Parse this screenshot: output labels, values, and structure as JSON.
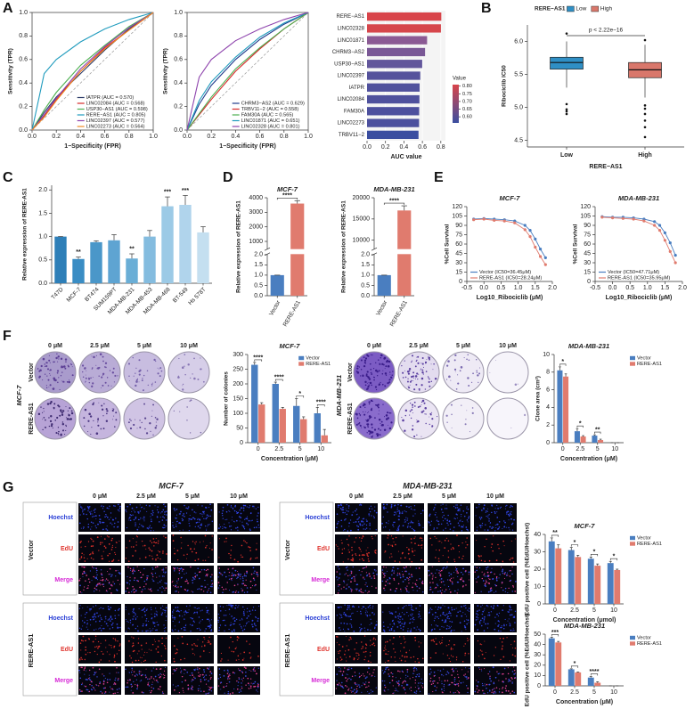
{
  "panel_labels": [
    "A",
    "B",
    "C",
    "D",
    "E",
    "F",
    "G"
  ],
  "colony_images": [
    {
      "cell_line": "MCF-7",
      "columns": [
        "0 μM",
        "2.5 μM",
        "5 μM",
        "10 μM"
      ],
      "rows": [
        "Vector",
        "RERE-AS1"
      ]
    },
    {
      "cell_line": "MDA-MB-231",
      "columns": [
        "0 μM",
        "2.5 μM",
        "5 μM",
        "10 μM"
      ],
      "rows": [
        "Vector",
        "RERE-AS1"
      ]
    }
  ],
  "edu_images": [
    {
      "cell_line": "MCF-7",
      "columns": [
        "0 μM",
        "2.5 μM",
        "5 μM",
        "10 μM"
      ],
      "groups": [
        "Vector",
        "RERE-AS1"
      ],
      "stains": [
        "Hoechst",
        "EdU",
        "Merge"
      ]
    },
    {
      "cell_line": "MDA-MB-231",
      "columns": [
        "0 μM",
        "2.5 μM",
        "5 μM",
        "10 μM"
      ],
      "groups": [
        "Vector",
        "RERE-AS1"
      ],
      "stains": [
        "Hoechst",
        "EdU",
        "Merge"
      ]
    }
  ],
  "chart_data": [
    {
      "type": "line",
      "frame": true,
      "diagonal": true,
      "legend": "lower right",
      "xlabel": "1−Specificity (FPR)",
      "ylabel": "Sensitivity (TPR)",
      "xlim": [
        0,
        1
      ],
      "ylim": [
        0,
        1
      ],
      "xticks": [
        {
          "value": 0,
          "label": "0.0"
        },
        0.2,
        0.4,
        0.6,
        0.8,
        {
          "value": 1,
          "label": "1.0"
        }
      ],
      "yticks": [
        {
          "value": 0,
          "label": "0.0"
        },
        0.2,
        0.4,
        0.6,
        0.8,
        {
          "value": 1,
          "label": "1.0"
        }
      ],
      "x": [
        0,
        0.1,
        0.2,
        0.4,
        0.6,
        0.8,
        1
      ],
      "series": [
        {
          "name": "IATPR (AUC = 0.570)",
          "color": "#2b3a67",
          "values": [
            0,
            0.15,
            0.28,
            0.48,
            0.68,
            0.86,
            1
          ]
        },
        {
          "name": "LINC02084 (AUC = 0.568)",
          "color": "#d62728",
          "values": [
            0,
            0.12,
            0.26,
            0.5,
            0.7,
            0.85,
            1
          ]
        },
        {
          "name": "USP30−AS1 (AUC = 0.598)",
          "color": "#4caf50",
          "values": [
            0,
            0.17,
            0.32,
            0.55,
            0.72,
            0.88,
            1
          ]
        },
        {
          "name": "RERE−AS1 (AUC = 0.805)",
          "color": "#1f9bbd",
          "values": [
            0,
            0.48,
            0.6,
            0.75,
            0.86,
            0.94,
            1
          ]
        },
        {
          "name": "LINC02397 (AUC = 0.577)",
          "color": "#8e44ad",
          "values": [
            0,
            0.13,
            0.27,
            0.52,
            0.71,
            0.87,
            1
          ]
        },
        {
          "name": "LINC02273 (AUC = 0.564)",
          "color": "#f08a24",
          "values": [
            0,
            0.11,
            0.25,
            0.5,
            0.69,
            0.85,
            1
          ]
        }
      ]
    },
    {
      "type": "line",
      "frame": true,
      "diagonal": true,
      "legend": "lower right",
      "xlabel": "1−Specificity (FPR)",
      "ylabel": "Sensitivity (TPR)",
      "xlim": [
        0,
        1
      ],
      "ylim": [
        0,
        1
      ],
      "xticks": [
        {
          "value": 0,
          "label": "0.0"
        },
        0.2,
        0.4,
        0.6,
        0.8,
        {
          "value": 1,
          "label": "1.0"
        }
      ],
      "yticks": [
        {
          "value": 0,
          "label": "0.0"
        },
        0.2,
        0.4,
        0.6,
        0.8,
        {
          "value": 1,
          "label": "1.0"
        }
      ],
      "x": [
        0,
        0.1,
        0.2,
        0.4,
        0.6,
        0.8,
        1
      ],
      "series": [
        {
          "name": "CHRM3−AS2 (AUC = 0.629)",
          "color": "#1f3b8c",
          "values": [
            0,
            0.22,
            0.38,
            0.6,
            0.77,
            0.9,
            1
          ]
        },
        {
          "name": "TRBV11−2 (AUC = 0.558)",
          "color": "#d62728",
          "values": [
            0,
            0.13,
            0.26,
            0.5,
            0.69,
            0.86,
            1
          ]
        },
        {
          "name": "FAM30A (AUC = 0.565)",
          "color": "#4caf50",
          "values": [
            0,
            0.14,
            0.28,
            0.52,
            0.7,
            0.86,
            1
          ]
        },
        {
          "name": "LINC01871 (AUC = 0.651)",
          "color": "#1f9bbd",
          "values": [
            0,
            0.25,
            0.41,
            0.62,
            0.79,
            0.91,
            1
          ]
        },
        {
          "name": "LINC02328 (AUC = 0.801)",
          "color": "#8e44ad",
          "values": [
            0,
            0.45,
            0.6,
            0.76,
            0.86,
            0.94,
            1
          ]
        }
      ]
    },
    {
      "type": "hbar",
      "xlabel": "AUC value",
      "xlim": [
        0,
        0.85
      ],
      "xticks": [
        {
          "value": 0,
          "label": "0.0"
        },
        0.2,
        0.4,
        0.6,
        0.8
      ],
      "categories": [
        "RERE−AS1",
        "LINC02328",
        "LINC01871",
        "CHRM3−AS2",
        "USP30−AS1",
        "LINC02397",
        "IATPR",
        "LINC02084",
        "FAM30A",
        "LINC02273",
        "TRBV11−2"
      ],
      "values": [
        0.805,
        0.801,
        0.651,
        0.629,
        0.598,
        0.577,
        0.57,
        0.568,
        0.565,
        0.564,
        0.558
      ],
      "colors": [
        "#d8444a",
        "#d6464b",
        "#8b5a94",
        "#7a5896",
        "#62569b",
        "#55529c",
        "#50519d",
        "#4f519d",
        "#4d509e",
        "#4c509e",
        "#3b4ea0"
      ],
      "colorbar": {
        "title": "Value",
        "lim": [
          0.56,
          0.81
        ],
        "colors": [
          "#3b4ea0",
          "#d8444a"
        ],
        "ticks": [
          {
            "value": 0.8,
            "label": "0.80"
          },
          0.75,
          {
            "value": 0.7,
            "label": "0.70"
          },
          0.65,
          {
            "value": 0.6,
            "label": "0.60"
          }
        ]
      }
    },
    {
      "type": "box",
      "legend_title": "RERE−AS1",
      "xlabel": "RERE−AS1",
      "ylabel": "Ribociclib IC50",
      "annotation": "p < 2.22e−16",
      "categories": [
        "Low",
        "High"
      ],
      "ylim": [
        4.4,
        6.25
      ],
      "yticks": [
        4.5,
        {
          "value": 5,
          "label": "5.0"
        },
        5.5,
        {
          "value": 6,
          "label": "6.0"
        }
      ],
      "boxes": [
        {
          "color": "#2f8fc5",
          "whisker_low": 5.3,
          "q1": 5.58,
          "median": 5.68,
          "q3": 5.76,
          "whisker_high": 6.0,
          "outliers": [
            4.9,
            4.94,
            4.97,
            5.05,
            6.12
          ]
        },
        {
          "color": "#d9776b",
          "whisker_low": 5.15,
          "q1": 5.45,
          "median": 5.57,
          "q3": 5.68,
          "whisker_high": 5.95,
          "outliers": [
            4.55,
            4.7,
            4.8,
            4.9,
            4.98,
            5.03,
            6.02
          ]
        }
      ]
    },
    {
      "type": "bar",
      "ylabel": "Relative expression of RERE-AS1",
      "xlabel_rotation": 45,
      "categories": [
        "T47D",
        "MCF-7",
        "BT474",
        "SUM159PT",
        "MDA-MB-231",
        "MDA-MB-453",
        "MDA-MB-468",
        "BT-549",
        "Hs 578T"
      ],
      "values": [
        1.0,
        0.52,
        0.88,
        0.92,
        0.53,
        1.0,
        1.65,
        1.68,
        1.09
      ],
      "errors": [
        0,
        0.04,
        0.03,
        0.12,
        0.1,
        0.13,
        0.2,
        0.2,
        0.12
      ],
      "colors": [
        "#2e7fb8",
        "#3a8dc4",
        "#4a97c9",
        "#5ea4d2",
        "#6aaed6",
        "#84bcdf",
        "#9ccae6",
        "#b0d4ec",
        "#c4dff0"
      ],
      "ylim": [
        0,
        2.1
      ],
      "yticks": [
        {
          "value": 0,
          "label": "0.0"
        },
        0.5,
        {
          "value": 1,
          "label": "1.0"
        },
        1.5,
        {
          "value": 2,
          "label": "2.0"
        }
      ],
      "annotations": [
        {
          "text": "**",
          "at": 1
        },
        {
          "text": "**",
          "at": 4
        },
        {
          "text": "***",
          "at": 6
        },
        {
          "text": "***",
          "at": 7
        }
      ]
    },
    {
      "type": "bar",
      "title": "MCF-7",
      "ylabel": "Relative expression of RERE-AS1",
      "xlabel_rotation": 60,
      "categories": [
        "Vector",
        "RERE-AS1"
      ],
      "values": [
        1,
        3600
      ],
      "errors": [
        0,
        200
      ],
      "colors": [
        "#4a7ec0",
        "#e07b6e"
      ],
      "ylim": [
        0,
        4000
      ],
      "ybreak": [
        2,
        500
      ],
      "yticks": [
        {
          "value": 0,
          "label": "0.0"
        },
        0.5,
        {
          "value": 1,
          "label": "1.0"
        },
        1.5,
        {
          "value": 2,
          "label": "2.0"
        },
        1000,
        2000,
        3000,
        4000
      ],
      "annotations": [
        {
          "text": "****",
          "at": [
            0,
            1
          ]
        }
      ]
    },
    {
      "type": "bar",
      "title": "MDA-MB-231",
      "ylabel": "Relative expression of RERE-AS1",
      "xlabel_rotation": 60,
      "categories": [
        "Vector",
        "RERE-AS1"
      ],
      "values": [
        1,
        17000
      ],
      "errors": [
        0,
        1100
      ],
      "colors": [
        "#4a7ec0",
        "#e07b6e"
      ],
      "ylim": [
        0,
        20000
      ],
      "ybreak": [
        2,
        8000
      ],
      "yticks": [
        {
          "value": 0,
          "label": "0.0"
        },
        0.5,
        {
          "value": 1,
          "label": "1.0"
        },
        1.5,
        {
          "value": 2,
          "label": "2.0"
        },
        10000,
        15000,
        20000
      ],
      "annotations": [
        {
          "text": "****",
          "at": [
            0,
            1
          ]
        }
      ]
    },
    {
      "type": "line",
      "markers": true,
      "legend": "lower left",
      "title": "MCF-7",
      "xlabel": "Log10_Ribociclib (μM)",
      "ylabel": "%Cell Survival",
      "xlim": [
        -0.5,
        2
      ],
      "ylim": [
        0,
        120
      ],
      "xticks": [
        -0.5,
        {
          "value": 0,
          "label": "0.0"
        },
        0.5,
        {
          "value": 1,
          "label": "1.0"
        },
        1.5,
        {
          "value": 2,
          "label": "2.0"
        }
      ],
      "yticks": [
        0,
        15,
        30,
        45,
        60,
        75,
        90,
        105,
        120
      ],
      "x": [
        -0.3,
        0,
        0.3,
        0.6,
        0.9,
        1.2,
        1.35,
        1.5,
        1.65,
        1.8
      ],
      "series": [
        {
          "name": "Vector (IC50=36.45μM)",
          "color": "#4a7ec0",
          "values": [
            100,
            101,
            100,
            99,
            97,
            90,
            82,
            68,
            52,
            38
          ]
        },
        {
          "name": "RERE-AS1 (IC50=28.24μM)",
          "color": "#e07b6e",
          "values": [
            99,
            100,
            98,
            97,
            94,
            83,
            72,
            55,
            40,
            27
          ]
        }
      ]
    },
    {
      "type": "line",
      "markers": true,
      "legend": "lower left",
      "title": "MDA-MB-231",
      "xlabel": "Log10_Ribociclib (μM)",
      "ylabel": "%Cell Survival",
      "xlim": [
        -0.5,
        2
      ],
      "ylim": [
        0,
        120
      ],
      "xticks": [
        -0.5,
        {
          "value": 0,
          "label": "0.0"
        },
        0.5,
        {
          "value": 1,
          "label": "1.0"
        },
        1.5,
        {
          "value": 2,
          "label": "2.0"
        }
      ],
      "yticks": [
        0,
        15,
        30,
        45,
        60,
        75,
        90,
        105,
        120
      ],
      "x": [
        -0.3,
        0,
        0.3,
        0.6,
        0.9,
        1.2,
        1.35,
        1.5,
        1.65,
        1.8
      ],
      "series": [
        {
          "name": "Vector (IC50=47.71μM)",
          "color": "#4a7ec0",
          "values": [
            104,
            103,
            103,
            102,
            100,
            96,
            90,
            78,
            62,
            42
          ]
        },
        {
          "name": "RERE-AS1 (IC50=35.95μM)",
          "color": "#e07b6e",
          "values": [
            103,
            102,
            101,
            100,
            97,
            90,
            82,
            66,
            48,
            30
          ]
        }
      ]
    },
    {
      "type": "bar",
      "title": "MCF-7",
      "ylabel": "Number of colonies",
      "xlabel": "Concentration (μM)",
      "legend": "upper right",
      "categories": [
        "0",
        "2.5",
        "5",
        "10"
      ],
      "series": [
        {
          "name": "Vector",
          "color": "#4a7ec0",
          "values": [
            265,
            200,
            125,
            100
          ],
          "errors": [
            8,
            6,
            25,
            20
          ]
        },
        {
          "name": "RERE-AS1",
          "color": "#e07b6e",
          "values": [
            130,
            115,
            80,
            25
          ],
          "errors": [
            6,
            5,
            8,
            20
          ]
        }
      ],
      "ylim": [
        0,
        300
      ],
      "yticks": [
        0,
        50,
        100,
        150,
        200,
        250,
        300
      ],
      "annotations": [
        {
          "text": "****",
          "at": 0
        },
        {
          "text": "****",
          "at": 1
        },
        {
          "text": "*",
          "at": 2
        },
        {
          "text": "****",
          "at": 3
        }
      ]
    },
    {
      "type": "bar",
      "title": "MDA-MB-231",
      "ylabel": "Clone area (cm²)",
      "xlabel": "Concentration (μM)",
      "legend": "outside right",
      "categories": [
        "0",
        "2.5",
        "5",
        "10"
      ],
      "series": [
        {
          "name": "Vector",
          "color": "#4a7ec0",
          "values": [
            8.2,
            1.3,
            0.8,
            0
          ],
          "errors": [
            0.4,
            0.3,
            0.1,
            0
          ]
        },
        {
          "name": "RERE-AS1",
          "color": "#e07b6e",
          "values": [
            7.5,
            0.7,
            0.3,
            0
          ],
          "errors": [
            0.3,
            0.1,
            0.1,
            0
          ]
        }
      ],
      "ylim": [
        0,
        10
      ],
      "yticks": [
        0,
        2,
        4,
        6,
        8,
        10
      ],
      "annotations": [
        {
          "text": "*",
          "at": 0
        },
        {
          "text": "*",
          "at": 1
        },
        {
          "text": "**",
          "at": 2
        }
      ]
    },
    {
      "type": "bar",
      "title": "MCF-7",
      "ylabel": "EdU positive cell (%EdU/Hoechst)",
      "xlabel": "Concentration (μmol)",
      "legend": "outside right",
      "categories": [
        "0",
        "2.5",
        "5",
        "10"
      ],
      "series": [
        {
          "name": "Vector",
          "color": "#4a7ec0",
          "values": [
            36,
            31,
            26,
            23.5
          ],
          "errors": [
            2,
            1.5,
            1,
            1
          ]
        },
        {
          "name": "RERE-AS1",
          "color": "#e07b6e",
          "values": [
            32,
            27,
            22,
            19.5
          ],
          "errors": [
            2,
            1,
            1,
            0.5
          ]
        }
      ],
      "ylim": [
        0,
        40
      ],
      "yticks": [
        0,
        10,
        20,
        30,
        40
      ],
      "annotations": [
        {
          "text": "**",
          "at": 0
        },
        {
          "text": "*",
          "at": 1
        },
        {
          "text": "*",
          "at": 2
        },
        {
          "text": "*",
          "at": 3
        }
      ]
    },
    {
      "type": "bar",
      "title": "MDA-MB-231",
      "ylabel": "EdU positive cell (%EdU/Hoechst)",
      "xlabel": "Concentration (μM)",
      "legend": "outside right",
      "categories": [
        "0",
        "2.5",
        "5",
        "10"
      ],
      "series": [
        {
          "name": "Vector",
          "color": "#4a7ec0",
          "values": [
            46,
            16,
            8,
            0
          ],
          "errors": [
            1,
            0.5,
            1,
            0
          ]
        },
        {
          "name": "RERE-AS1",
          "color": "#e07b6e",
          "values": [
            42,
            13,
            3,
            0
          ],
          "errors": [
            1,
            0.5,
            1,
            0
          ]
        }
      ],
      "ylim": [
        0,
        50
      ],
      "yticks": [
        0,
        10,
        20,
        30,
        40,
        50
      ],
      "annotations": [
        {
          "text": "***",
          "at": 0
        },
        {
          "text": "*",
          "at": 1
        },
        {
          "text": "****",
          "at": 2
        }
      ]
    }
  ]
}
